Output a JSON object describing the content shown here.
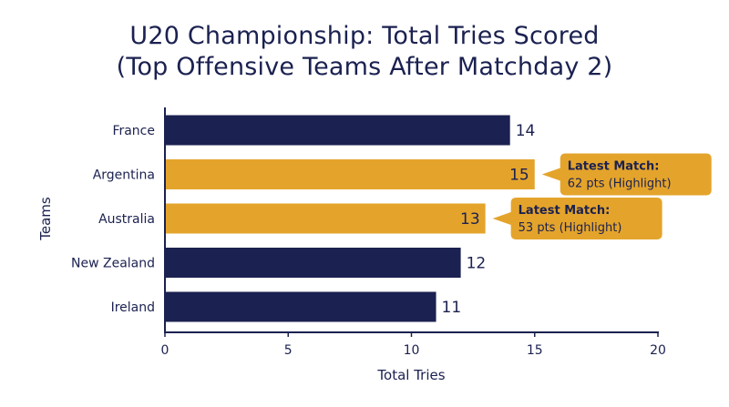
{
  "chart_data": {
    "type": "bar",
    "orientation": "horizontal",
    "title": "U20 Championship: Total Tries Scored",
    "subtitle": "(Top Offensive Teams After Matchday 2)",
    "xlabel": "Total Tries",
    "ylabel": "Teams",
    "xlim": [
      0,
      20
    ],
    "xticks": [
      0,
      5,
      10,
      15,
      20
    ],
    "grid": false,
    "categories": [
      "France",
      "Argentina",
      "Australia",
      "New Zealand",
      "Ireland"
    ],
    "values": [
      14,
      15,
      13,
      12,
      11
    ],
    "highlighted": [
      false,
      true,
      true,
      false,
      false
    ],
    "colors": {
      "default": "#1b2150",
      "highlight": "#e4a42b",
      "text": "#1b2150"
    },
    "annotations": [
      {
        "category": "Argentina",
        "title": "Latest Match:",
        "text": "62 pts (Highlight)"
      },
      {
        "category": "Australia",
        "title": "Latest Match:",
        "text": "53 pts (Highlight)"
      }
    ]
  }
}
